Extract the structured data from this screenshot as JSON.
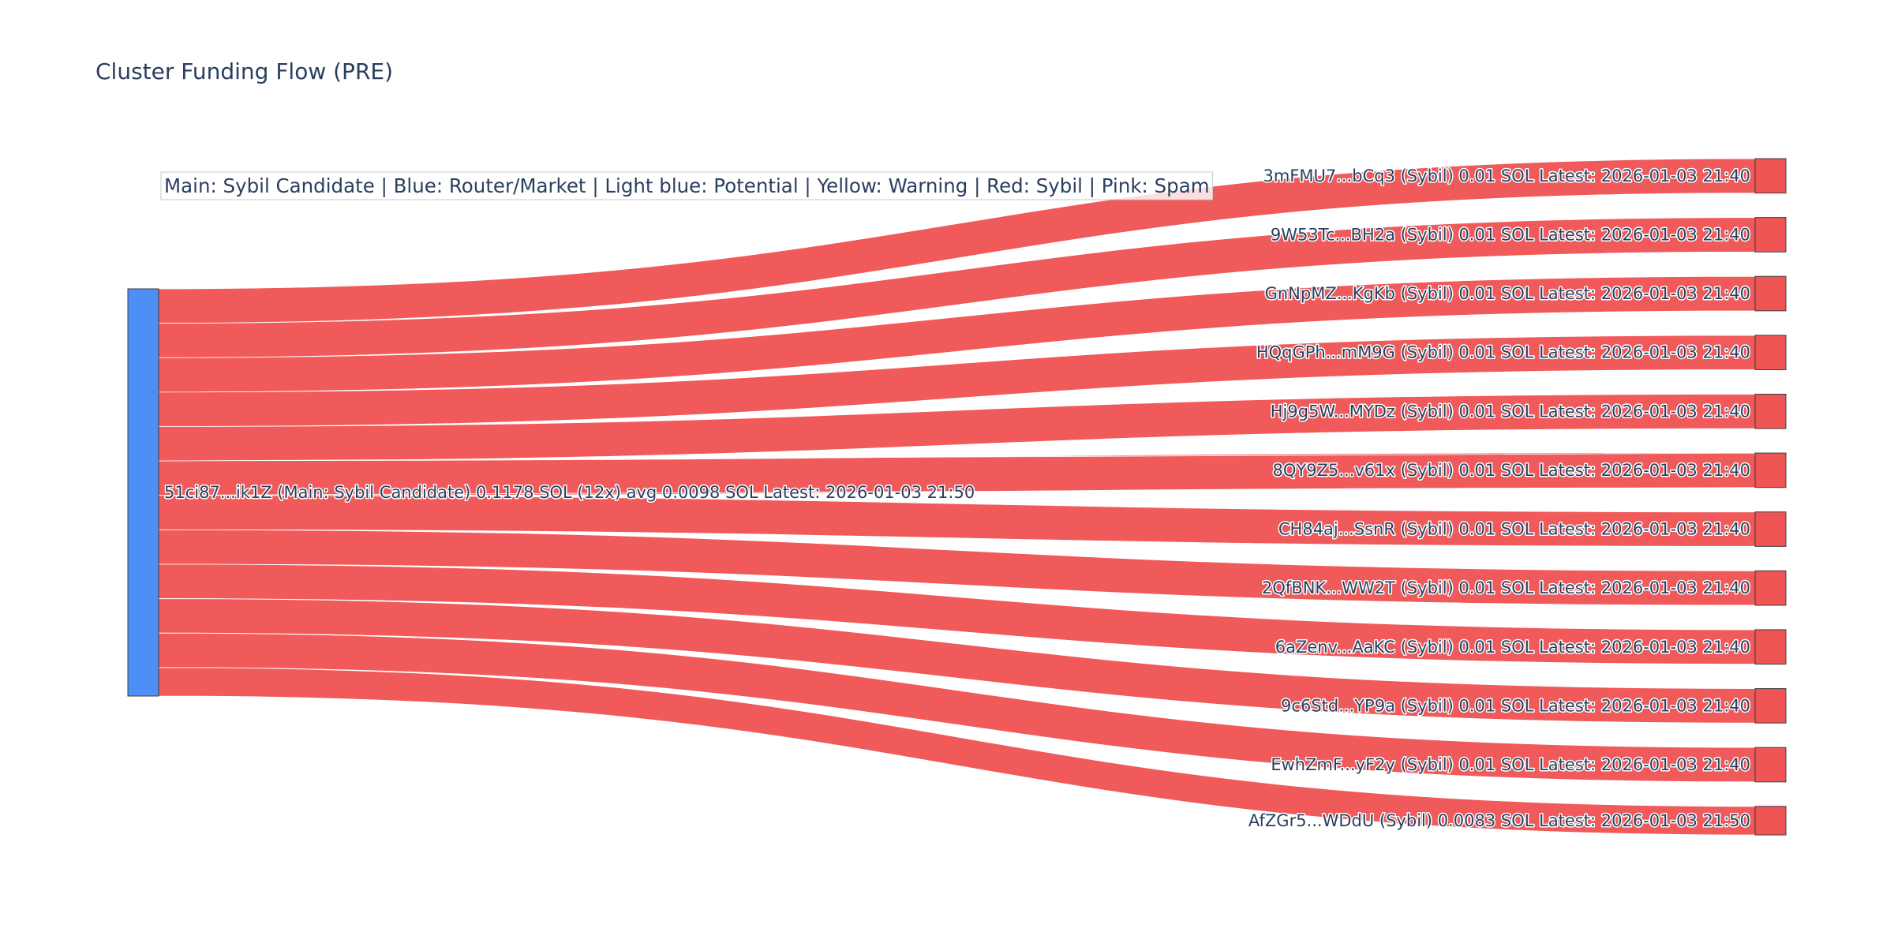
{
  "chart_data": {
    "type": "sankey",
    "title": "Cluster Funding Flow (PRE)",
    "legend_note": "Main: Sybil Candidate  |  Blue: Router/Market | Light blue: Potential | Yellow: Warning | Red: Sybil | Pink: Spam",
    "colors": {
      "source_node": "#4d8ff7",
      "target_node": "#ef5555",
      "link": "#ef5555",
      "node_border": "#3d3d3d",
      "text": "#2a3f5f"
    },
    "source": {
      "label": "51ci87...ik1Z (Main: Sybil Candidate) 0.1178 SOL (12x) avg 0.0098 SOL Latest: 2026-01-03 21:50"
    },
    "targets": [
      {
        "label": "3mFMU7...bCq3 (Sybil) 0.01 SOL Latest: 2026-01-03 21:40",
        "value": 0.01
      },
      {
        "label": "9W53Tc...BH2a (Sybil) 0.01 SOL Latest: 2026-01-03 21:40",
        "value": 0.01
      },
      {
        "label": "GnNpMZ...KgKb (Sybil) 0.01 SOL Latest: 2026-01-03 21:40",
        "value": 0.01
      },
      {
        "label": "HQqGPh...mM9G (Sybil) 0.01 SOL Latest: 2026-01-03 21:40",
        "value": 0.01
      },
      {
        "label": "Hj9g5W...MYDz (Sybil) 0.01 SOL Latest: 2026-01-03 21:40",
        "value": 0.01
      },
      {
        "label": "8QY9Z5...v61x (Sybil) 0.01 SOL Latest: 2026-01-03 21:40",
        "value": 0.01
      },
      {
        "label": "CH84aj...SsnR (Sybil) 0.01 SOL Latest: 2026-01-03 21:40",
        "value": 0.01
      },
      {
        "label": "2QfBNK...WW2T (Sybil) 0.01 SOL Latest: 2026-01-03 21:40",
        "value": 0.01
      },
      {
        "label": "6aZenv...AaKC (Sybil) 0.01 SOL Latest: 2026-01-03 21:40",
        "value": 0.01
      },
      {
        "label": "9c6Std...YP9a (Sybil) 0.01 SOL Latest: 2026-01-03 21:40",
        "value": 0.01
      },
      {
        "label": "EwhZmF...yF2y (Sybil) 0.01 SOL Latest: 2026-01-03 21:40",
        "value": 0.01
      },
      {
        "label": "AfZGr5...WDdU (Sybil) 0.0083 SOL Latest: 2026-01-03 21:50",
        "value": 0.0083
      }
    ]
  }
}
